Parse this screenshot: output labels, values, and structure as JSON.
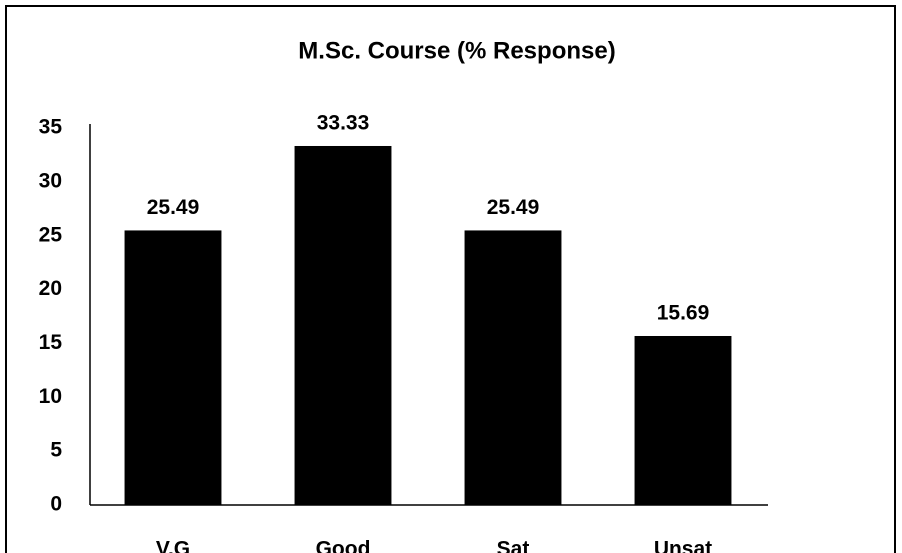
{
  "chart_data": {
    "type": "bar",
    "title": "M.Sc. Course (% Response)",
    "categories": [
      "V.G",
      "Good",
      "Sat",
      "Unsat"
    ],
    "values": [
      25.49,
      33.33,
      25.49,
      15.69
    ],
    "color": "#000000",
    "ylim": [
      0,
      35
    ],
    "yticks": [
      0,
      5,
      10,
      15,
      20,
      25,
      30,
      35
    ],
    "grid": false
  }
}
